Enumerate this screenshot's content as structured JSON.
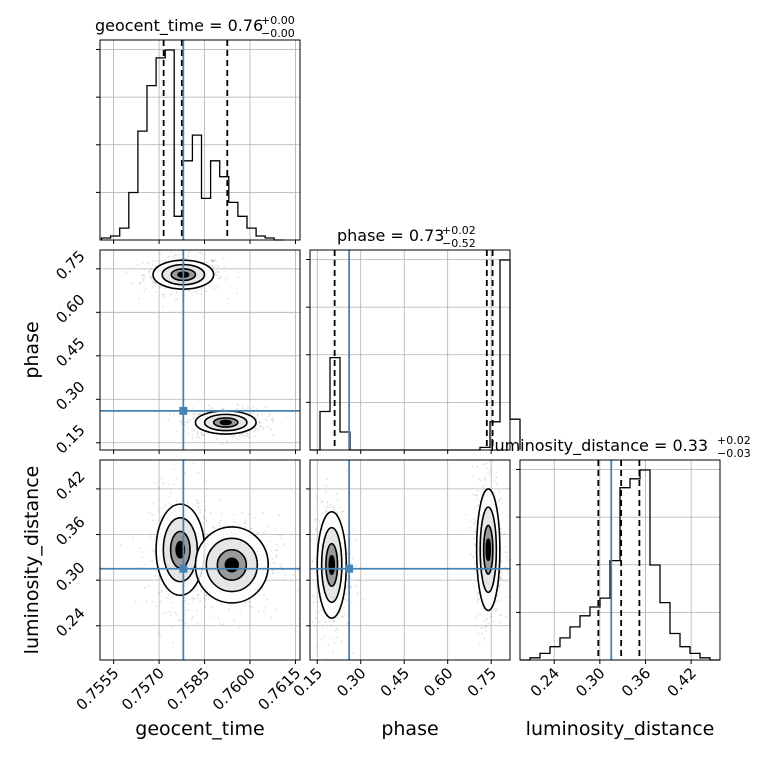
{
  "chart_data": {
    "type": "corner",
    "parameters": [
      "geocent_time",
      "phase",
      "luminosity_distance"
    ],
    "titles": [
      {
        "label": "geocent_time = 0.76",
        "plus": "+0.00",
        "minus": "−0.00"
      },
      {
        "label": "phase = 0.73",
        "plus": "+0.02",
        "minus": "−0.52"
      },
      {
        "label": "luminosity_distance = 0.33",
        "plus": "+0.02",
        "minus": "−0.03"
      }
    ],
    "axes": {
      "geocent_time": {
        "range": [
          0.75505,
          0.76165
        ],
        "ticks": [
          "0.7555",
          "0.7570",
          "0.7585",
          "0.7600",
          "0.7615"
        ],
        "tick_values": [
          0.7555,
          0.757,
          0.7585,
          0.76,
          0.7615
        ]
      },
      "phase": {
        "range": [
          0.125,
          0.815
        ],
        "ticks": [
          "0.15",
          "0.30",
          "0.45",
          "0.60",
          "0.75"
        ],
        "tick_values": [
          0.15,
          0.3,
          0.45,
          0.6,
          0.75
        ]
      },
      "luminosity_distance": {
        "range": [
          0.195,
          0.458
        ],
        "ticks": [
          "0.24",
          "0.30",
          "0.36",
          "0.42"
        ],
        "tick_values": [
          0.24,
          0.3,
          0.36,
          0.42
        ]
      }
    },
    "truths": {
      "geocent_time": 0.7578,
      "phase": 0.26,
      "luminosity_distance": 0.315
    },
    "quantile_lines": {
      "geocent_time": [
        0.75715,
        0.75775,
        0.75925
      ],
      "phase": [
        0.21,
        0.735,
        0.755
      ],
      "luminosity_distance": [
        0.298,
        0.328,
        0.352
      ]
    },
    "histograms": {
      "geocent_time": {
        "edges_start": 0.7551,
        "bin_width": 0.0003,
        "counts": [
          0.01,
          0.02,
          0.06,
          0.24,
          0.55,
          0.78,
          0.92,
          0.96,
          0.12,
          0.4,
          0.53,
          0.21,
          0.4,
          0.32,
          0.19,
          0.12,
          0.06,
          0.02,
          0.01,
          0.0
        ]
      },
      "phase": {
        "edges_start": 0.125,
        "bin_width": 0.0345,
        "counts": [
          0.0,
          0.15,
          0.36,
          0.07,
          0.0,
          0.0,
          0.0,
          0.0,
          0.0,
          0.0,
          0.0,
          0.0,
          0.0,
          0.0,
          0.0,
          0.0,
          0.0,
          0.01,
          0.11,
          0.74,
          0.12
        ]
      },
      "luminosity_distance": {
        "edges_start": 0.195,
        "bin_width": 0.01315,
        "counts": [
          0.0,
          0.01,
          0.03,
          0.06,
          0.1,
          0.15,
          0.2,
          0.24,
          0.28,
          0.45,
          0.78,
          0.82,
          0.86,
          0.43,
          0.26,
          0.12,
          0.06,
          0.03,
          0.01,
          0.0
        ]
      }
    },
    "contour_modes": [
      {
        "x": "geocent_time",
        "y": "phase",
        "cx": 0.7578,
        "cy": 0.73,
        "sx": 0.0005,
        "sy": 0.025
      },
      {
        "x": "geocent_time",
        "y": "phase",
        "cx": 0.7592,
        "cy": 0.22,
        "sx": 0.0005,
        "sy": 0.02
      },
      {
        "x": "geocent_time",
        "y": "luminosity_distance",
        "cx": 0.7577,
        "cy": 0.34,
        "sx": 0.0004,
        "sy": 0.03
      },
      {
        "x": "geocent_time",
        "y": "luminosity_distance",
        "cx": 0.7594,
        "cy": 0.32,
        "sx": 0.0006,
        "sy": 0.025
      },
      {
        "x": "phase",
        "y": "luminosity_distance",
        "cx": 0.2,
        "cy": 0.32,
        "sx": 0.025,
        "sy": 0.035
      },
      {
        "x": "phase",
        "y": "luminosity_distance",
        "cx": 0.74,
        "cy": 0.34,
        "sx": 0.02,
        "sy": 0.04
      }
    ],
    "colors": {
      "truth": "#4682b4",
      "hist": "#000000",
      "grid": "#b0b0b0",
      "samples": "#000000"
    },
    "grid": true
  }
}
